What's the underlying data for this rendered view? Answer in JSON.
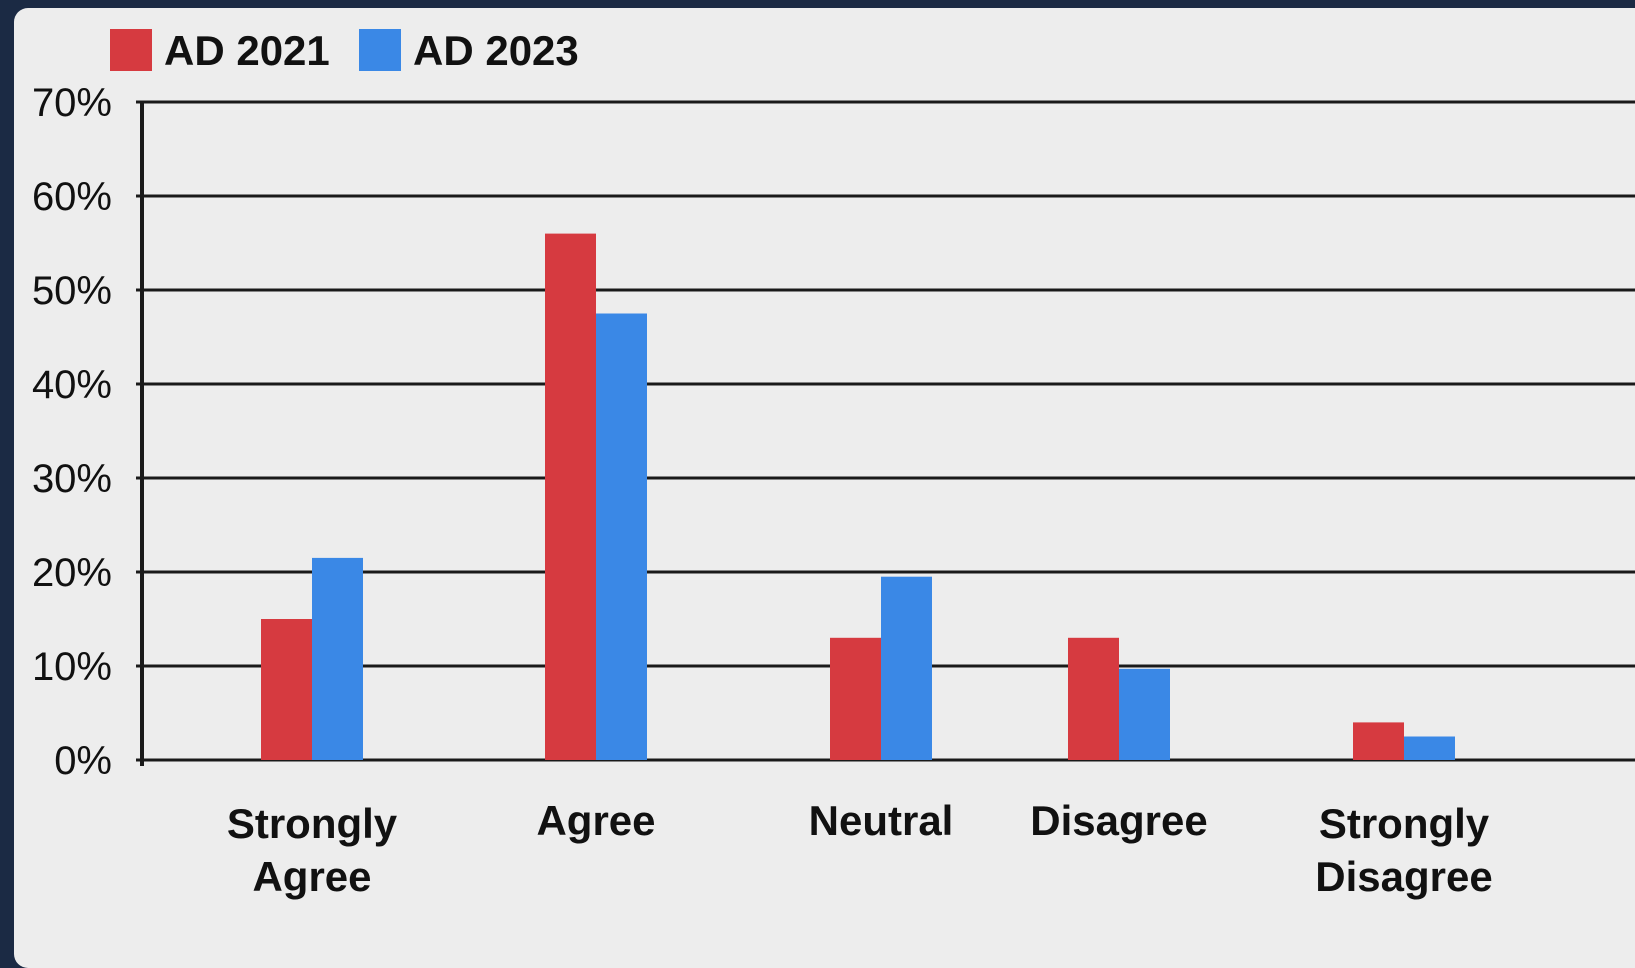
{
  "chart_data": {
    "type": "bar",
    "categories": [
      "Strongly Agree",
      "Agree",
      "Neutral",
      "Disagree",
      "Strongly Disagree"
    ],
    "category_lines": [
      [
        "Strongly",
        "Agree"
      ],
      [
        "Agree"
      ],
      [
        "Neutral"
      ],
      [
        "Disagree"
      ],
      [
        "Strongly",
        "Disagree"
      ]
    ],
    "series": [
      {
        "name": "AD 2021",
        "color": "#d63a40",
        "values": [
          15,
          56,
          13,
          13,
          4
        ]
      },
      {
        "name": "AD 2023",
        "color": "#3a88e6",
        "values": [
          21.5,
          47.5,
          19.5,
          9.7,
          2.5
        ]
      }
    ],
    "yticks": [
      "0%",
      "10%",
      "20%",
      "30%",
      "40%",
      "50%",
      "60%",
      "70%"
    ],
    "ylim": [
      0,
      70
    ],
    "grid": true,
    "legend_position": "top-left",
    "title": "",
    "xlabel": "",
    "ylabel": ""
  }
}
